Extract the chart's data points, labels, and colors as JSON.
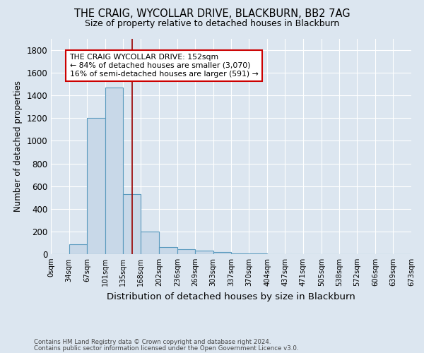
{
  "title": "THE CRAIG, WYCOLLAR DRIVE, BLACKBURN, BB2 7AG",
  "subtitle": "Size of property relative to detached houses in Blackburn",
  "xlabel": "Distribution of detached houses by size in Blackburn",
  "ylabel": "Number of detached properties",
  "footnote1": "Contains HM Land Registry data © Crown copyright and database right 2024.",
  "footnote2": "Contains public sector information licensed under the Open Government Licence v3.0.",
  "bin_edges": [
    0,
    34,
    67,
    101,
    135,
    168,
    202,
    236,
    269,
    303,
    337,
    370,
    404,
    437,
    471,
    505,
    538,
    572,
    606,
    639,
    673
  ],
  "bin_labels": [
    "0sqm",
    "34sqm",
    "67sqm",
    "101sqm",
    "135sqm",
    "168sqm",
    "202sqm",
    "236sqm",
    "269sqm",
    "303sqm",
    "337sqm",
    "370sqm",
    "404sqm",
    "437sqm",
    "471sqm",
    "505sqm",
    "538sqm",
    "572sqm",
    "606sqm",
    "639sqm",
    "673sqm"
  ],
  "counts": [
    0,
    90,
    1200,
    1470,
    530,
    200,
    60,
    45,
    30,
    20,
    8,
    5,
    3,
    2,
    0,
    0,
    0,
    0,
    0,
    0
  ],
  "bar_color": "#c8d8e8",
  "bar_edge_color": "#5a9abe",
  "red_line_x": 152,
  "ylim": [
    0,
    1900
  ],
  "yticks": [
    0,
    200,
    400,
    600,
    800,
    1000,
    1200,
    1400,
    1600,
    1800
  ],
  "annotation_line1": "THE CRAIG WYCOLLAR DRIVE: 152sqm",
  "annotation_line2": "← 84% of detached houses are smaller (3,070)",
  "annotation_line3": "16% of semi-detached houses are larger (591) →",
  "annotation_box_color": "#ffffff",
  "annotation_box_edge": "#cc0000",
  "background_color": "#dce6f0",
  "plot_bg_color": "#dce6f0"
}
